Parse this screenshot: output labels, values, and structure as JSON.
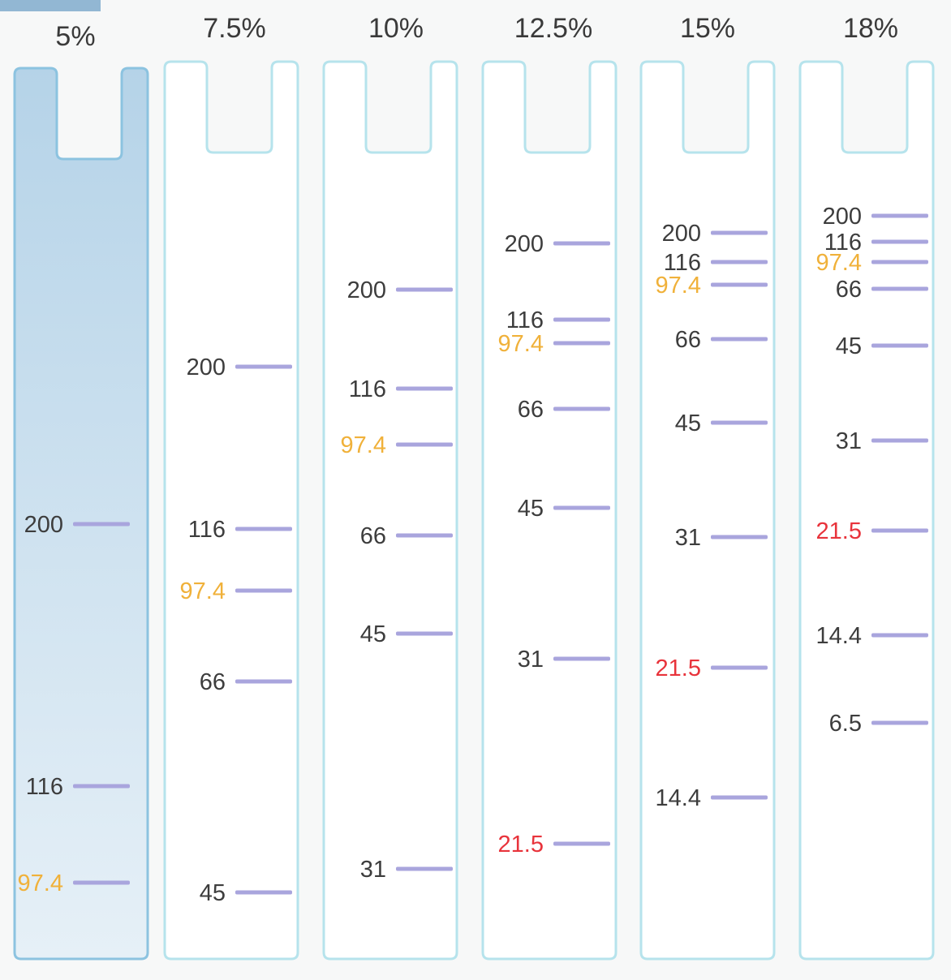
{
  "colors": {
    "label_default": "#3d3d3d",
    "label_97_4": "#f0b13a",
    "label_21_5": "#e8333b",
    "band": "#a9a5dd",
    "gel_outline": "#b6e3ec",
    "gel_fill_first_top": "#b5d3e8",
    "gel_fill_first_bottom": "#e6f0f7",
    "gel_fill": "#ffffff",
    "corner_tab": "#92b7d3"
  },
  "gels": [
    {
      "percent": "5%",
      "bands": [
        {
          "label": "200",
          "color": "label_default"
        },
        {
          "label": "116",
          "color": "label_default"
        },
        {
          "label": "97.4",
          "color": "label_97_4"
        }
      ]
    },
    {
      "percent": "7.5%",
      "bands": [
        {
          "label": "200",
          "color": "label_default"
        },
        {
          "label": "116",
          "color": "label_default"
        },
        {
          "label": "97.4",
          "color": "label_97_4"
        },
        {
          "label": "66",
          "color": "label_default"
        },
        {
          "label": "45",
          "color": "label_default"
        }
      ]
    },
    {
      "percent": "10%",
      "bands": [
        {
          "label": "200",
          "color": "label_default"
        },
        {
          "label": "116",
          "color": "label_default"
        },
        {
          "label": "97.4",
          "color": "label_97_4"
        },
        {
          "label": "66",
          "color": "label_default"
        },
        {
          "label": "45",
          "color": "label_default"
        },
        {
          "label": "31",
          "color": "label_default"
        }
      ]
    },
    {
      "percent": "12.5%",
      "bands": [
        {
          "label": "200",
          "color": "label_default"
        },
        {
          "label": "116",
          "color": "label_default"
        },
        {
          "label": "97.4",
          "color": "label_97_4"
        },
        {
          "label": "66",
          "color": "label_default"
        },
        {
          "label": "45",
          "color": "label_default"
        },
        {
          "label": "31",
          "color": "label_default"
        },
        {
          "label": "21.5",
          "color": "label_21_5"
        }
      ]
    },
    {
      "percent": "15%",
      "bands": [
        {
          "label": "200",
          "color": "label_default"
        },
        {
          "label": "116",
          "color": "label_default"
        },
        {
          "label": "97.4",
          "color": "label_97_4"
        },
        {
          "label": "66",
          "color": "label_default"
        },
        {
          "label": "45",
          "color": "label_default"
        },
        {
          "label": "31",
          "color": "label_default"
        },
        {
          "label": "21.5",
          "color": "label_21_5"
        },
        {
          "label": "14.4",
          "color": "label_default"
        }
      ]
    },
    {
      "percent": "18%",
      "bands": [
        {
          "label": "200",
          "color": "label_default"
        },
        {
          "label": "116",
          "color": "label_default"
        },
        {
          "label": "97.4",
          "color": "label_97_4"
        },
        {
          "label": "66",
          "color": "label_default"
        },
        {
          "label": "45",
          "color": "label_default"
        },
        {
          "label": "31",
          "color": "label_default"
        },
        {
          "label": "21.5",
          "color": "label_21_5"
        },
        {
          "label": "14.4",
          "color": "label_default"
        },
        {
          "label": "6.5",
          "color": "label_default"
        }
      ]
    }
  ]
}
